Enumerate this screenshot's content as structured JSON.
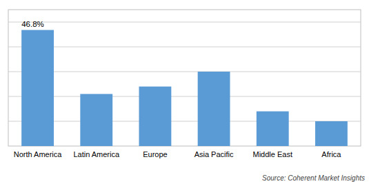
{
  "chart_data": {
    "type": "bar",
    "categories": [
      "North America",
      "Latin America",
      "Europe",
      "Asia Pacific",
      "Middle East",
      "Africa"
    ],
    "values": [
      46.8,
      21.0,
      24.0,
      30.0,
      14.0,
      10.0
    ],
    "color": "#5b9bd5",
    "ylim": [
      0,
      55
    ],
    "yticks": [
      10,
      20,
      30,
      40,
      50
    ],
    "grid": true,
    "tick_labels": "x",
    "annotations": [
      {
        "text": "46.8%",
        "category": "North America"
      }
    ],
    "source": "Source: Coherent Market Insights"
  }
}
